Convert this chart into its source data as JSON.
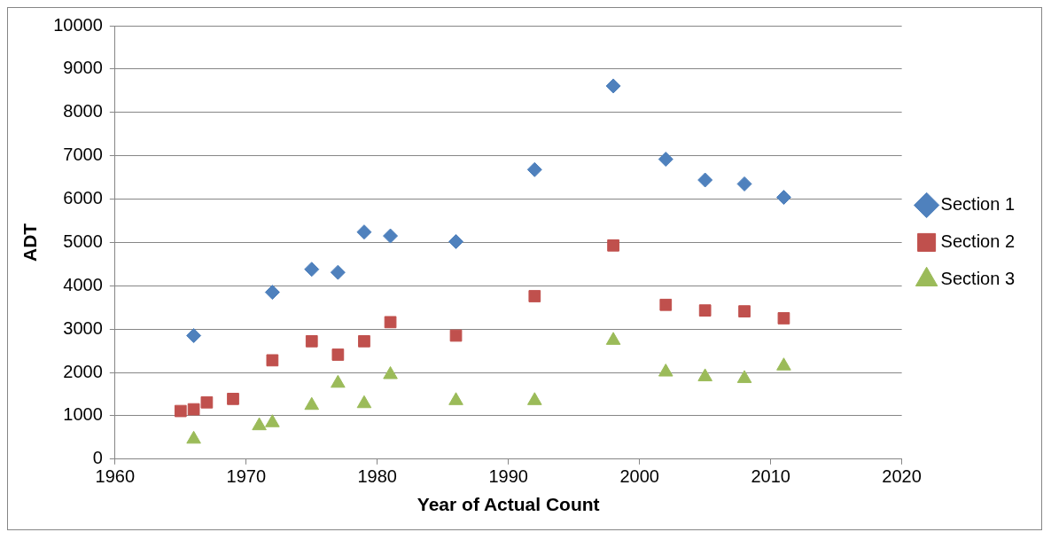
{
  "chart_data": {
    "type": "scatter",
    "xlabel": "Year of Actual Count",
    "ylabel": "ADT",
    "xlim": [
      1960,
      2020
    ],
    "xticks": [
      1960,
      1970,
      1980,
      1990,
      2000,
      2010,
      2020
    ],
    "ylim": [
      0,
      10000
    ],
    "yticks": [
      0,
      1000,
      2000,
      3000,
      4000,
      5000,
      6000,
      7000,
      8000,
      9000,
      10000
    ],
    "grid": "y",
    "legend": "right",
    "series": [
      {
        "name": "Section 1",
        "color": "#4f81bd",
        "marker": "diamond",
        "x": [
          1966,
          1972,
          1975,
          1977,
          1979,
          1981,
          1986,
          1992,
          1998,
          2002,
          2005,
          2008,
          2011
        ],
        "values": [
          2850,
          3850,
          4380,
          4310,
          5240,
          5150,
          5020,
          6680,
          8610,
          6920,
          6440,
          6350,
          6040
        ]
      },
      {
        "name": "Section 2",
        "color": "#c0504d",
        "marker": "square",
        "x": [
          1965,
          1966,
          1967,
          1969,
          1972,
          1975,
          1977,
          1979,
          1981,
          1986,
          1992,
          1998,
          2002,
          2005,
          2008,
          2011
        ],
        "values": [
          1110,
          1150,
          1310,
          1390,
          2280,
          2720,
          2410,
          2720,
          3160,
          2850,
          3760,
          4930,
          3560,
          3430,
          3410,
          3250
        ]
      },
      {
        "name": "Section 3",
        "color": "#9bbb59",
        "marker": "triangle",
        "x": [
          1966,
          1971,
          1972,
          1975,
          1977,
          1979,
          1981,
          1986,
          1992,
          1998,
          2002,
          2005,
          2008,
          2011
        ],
        "values": [
          460,
          770,
          840,
          1240,
          1750,
          1280,
          1950,
          1350,
          1350,
          2740,
          2010,
          1900,
          1860,
          2150
        ]
      }
    ]
  }
}
